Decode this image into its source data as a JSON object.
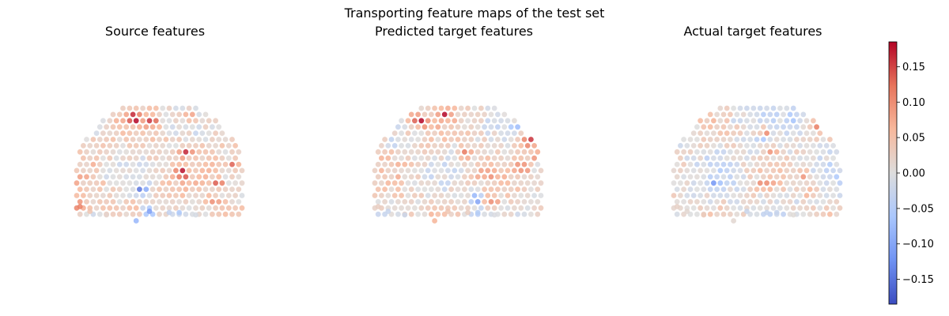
{
  "figure": {
    "suptitle": "Transporting feature maps of the test set"
  },
  "colormap": {
    "name": "coolwarm",
    "stops": [
      "#3b4cc0",
      "#6f92f3",
      "#aac7fd",
      "#dddddd",
      "#f7b89c",
      "#e7745b",
      "#b40426"
    ]
  },
  "chart_data": [
    {
      "type": "scatter",
      "title": "Source features",
      "xlabel": "",
      "ylabel": "",
      "axis": "off",
      "pattern_seed": 11,
      "value_bias": 0.025,
      "accents": [
        {
          "x": 0.35,
          "y": 0.92,
          "v": 0.16
        },
        {
          "x": 0.45,
          "y": 0.88,
          "v": 0.14
        },
        {
          "x": 0.68,
          "y": 0.93,
          "v": 0.15
        },
        {
          "x": 0.66,
          "y": 0.64,
          "v": 0.13
        },
        {
          "x": 0.63,
          "y": 0.45,
          "v": 0.14
        },
        {
          "x": 0.94,
          "y": 0.52,
          "v": 0.12
        },
        {
          "x": 0.86,
          "y": 0.36,
          "v": 0.11
        },
        {
          "x": 0.4,
          "y": 0.31,
          "v": -0.16
        },
        {
          "x": 0.18,
          "y": 0.45,
          "v": -0.05
        },
        {
          "x": 0.36,
          "y": 0.05,
          "v": -0.13
        },
        {
          "x": 0.44,
          "y": 0.13,
          "v": -0.15
        },
        {
          "x": 0.6,
          "y": 0.1,
          "v": -0.07
        },
        {
          "x": 0.02,
          "y": 0.17,
          "v": 0.11
        },
        {
          "x": 0.83,
          "y": 0.22,
          "v": 0.09
        }
      ]
    },
    {
      "type": "scatter",
      "title": "Predicted target features",
      "xlabel": "",
      "ylabel": "",
      "axis": "off",
      "pattern_seed": 23,
      "value_bias": 0.02,
      "accents": [
        {
          "x": 0.22,
          "y": 0.92,
          "v": 0.13
        },
        {
          "x": 0.28,
          "y": 0.88,
          "v": 0.14
        },
        {
          "x": 0.42,
          "y": 0.94,
          "v": 0.13
        },
        {
          "x": 0.98,
          "y": 0.75,
          "v": 0.17
        },
        {
          "x": 0.92,
          "y": 0.72,
          "v": 0.12
        },
        {
          "x": 0.99,
          "y": 0.6,
          "v": 0.13
        },
        {
          "x": 0.9,
          "y": 0.5,
          "v": 0.14
        },
        {
          "x": 0.55,
          "y": 0.62,
          "v": 0.12
        },
        {
          "x": 0.66,
          "y": 0.45,
          "v": 0.1
        },
        {
          "x": 0.7,
          "y": 0.22,
          "v": 0.12
        },
        {
          "x": 0.61,
          "y": 0.24,
          "v": -0.18
        },
        {
          "x": 0.4,
          "y": 0.03,
          "v": 0.12
        },
        {
          "x": 0.62,
          "y": 0.12,
          "v": -0.07
        },
        {
          "x": 0.12,
          "y": 0.71,
          "v": -0.05
        },
        {
          "x": 0.85,
          "y": 0.85,
          "v": -0.05
        }
      ]
    },
    {
      "type": "scatter",
      "title": "Actual target features",
      "xlabel": "",
      "ylabel": "",
      "axis": "off",
      "pattern_seed": 37,
      "value_bias": 0.005,
      "accents": [
        {
          "x": 0.55,
          "y": 0.8,
          "v": 0.12
        },
        {
          "x": 0.86,
          "y": 0.85,
          "v": 0.11
        },
        {
          "x": 0.58,
          "y": 0.65,
          "v": 0.09
        },
        {
          "x": 0.55,
          "y": 0.35,
          "v": 0.12
        },
        {
          "x": 0.78,
          "y": 0.45,
          "v": 0.1
        },
        {
          "x": 0.82,
          "y": 0.3,
          "v": 0.09
        },
        {
          "x": 0.25,
          "y": 0.35,
          "v": -0.09
        },
        {
          "x": 0.4,
          "y": 0.9,
          "v": -0.06
        },
        {
          "x": 0.55,
          "y": 0.72,
          "v": -0.07
        },
        {
          "x": 0.72,
          "y": 0.93,
          "v": -0.05
        },
        {
          "x": 0.36,
          "y": 0.05,
          "v": -0.04
        }
      ]
    }
  ],
  "colorbar": {
    "min": -0.185,
    "max": 0.185,
    "ticks": [
      -0.15,
      -0.1,
      -0.05,
      0.0,
      0.05,
      0.1,
      0.15
    ],
    "tick_labels": [
      "−0.15",
      "−0.10",
      "−0.05",
      "0.00",
      "0.05",
      "0.10",
      "0.15"
    ]
  }
}
